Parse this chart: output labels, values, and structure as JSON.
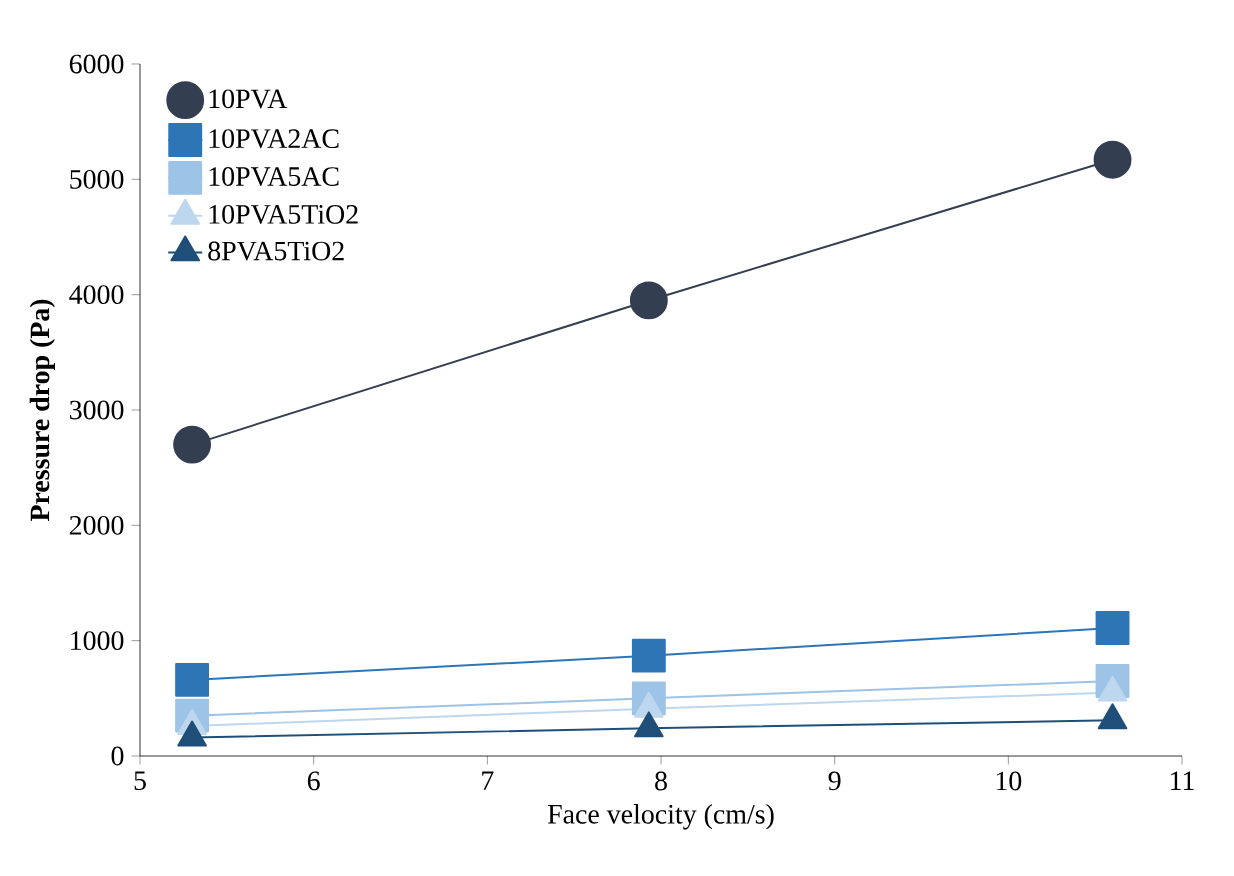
{
  "chart_data": {
    "type": "line",
    "xlabel": "Face velocity (cm/s)",
    "ylabel": "Pressure drop (Pa)",
    "x": [
      5.3,
      7.93,
      10.6
    ],
    "series": [
      {
        "name": "10PVA",
        "color": "#333f50",
        "marker": "circle",
        "values": [
          2700,
          3950,
          5170
        ]
      },
      {
        "name": "10PVA2AC",
        "color": "#2e75b6",
        "marker": "square",
        "values": [
          660,
          870,
          1110
        ]
      },
      {
        "name": "10PVA5AC",
        "color": "#9dc3e6",
        "marker": "square",
        "values": [
          350,
          500,
          650
        ]
      },
      {
        "name": "10PVA5TiO2",
        "color": "#bdd7ee",
        "marker": "triangle",
        "values": [
          260,
          410,
          550
        ]
      },
      {
        "name": "8PVA5TiO2",
        "color": "#1f4e79",
        "marker": "triangle",
        "values": [
          160,
          240,
          310
        ]
      }
    ],
    "xlim": [
      5,
      11
    ],
    "ylim": [
      0,
      6000
    ],
    "xticks": [
      5,
      6,
      7,
      8,
      9,
      10,
      11
    ],
    "yticks": [
      0,
      1000,
      2000,
      3000,
      4000,
      5000,
      6000
    ],
    "grid": false,
    "legend": "top left"
  }
}
